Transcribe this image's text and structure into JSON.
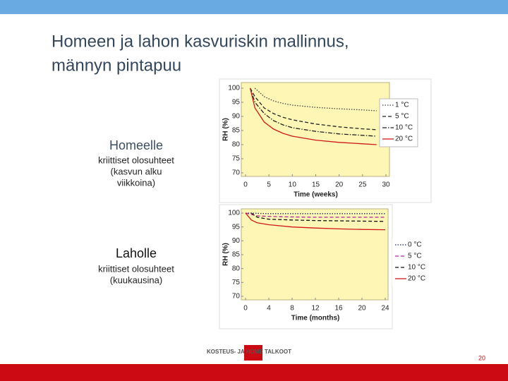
{
  "slide": {
    "title_lines": [
      "Homeen ja lahon kasvuriskin mallinnus,",
      "männyn pintapuu"
    ],
    "sections": [
      {
        "heading": "Homeelle",
        "lines": [
          "kriittiset  olosuhteet",
          "(kasvun alku",
          "viikkoina)"
        ]
      },
      {
        "heading": "Laholle",
        "lines": [
          "kriittiset olosuhteet",
          "(kuukausina)"
        ]
      }
    ],
    "logo": "KOSTEUS- JA HOME TALKOOT",
    "page_number": "20"
  },
  "chart_data": [
    {
      "type": "line",
      "xlabel": "Time (weeks)",
      "ylabel": "RH (%)",
      "x": [
        1,
        2,
        4,
        6,
        8,
        10,
        15,
        20,
        25,
        28
      ],
      "xlim": [
        0,
        30
      ],
      "xticks": [
        0,
        5,
        10,
        15,
        20,
        25,
        30
      ],
      "ylim": [
        70,
        100
      ],
      "yticks": [
        70,
        75,
        80,
        85,
        90,
        95,
        100
      ],
      "grid": false,
      "legend": "right",
      "series": [
        {
          "name": "1 °C",
          "color": "#444444",
          "dash": "dotted",
          "values": [
            null,
            100,
            97,
            95.5,
            94.6,
            94,
            93.2,
            92.7,
            92.3,
            92
          ]
        },
        {
          "name": "5 °C",
          "color": "#222222",
          "dash": "dashed",
          "values": [
            100,
            97,
            93,
            91,
            89.7,
            88.8,
            87.3,
            86.3,
            85.6,
            85.3
          ]
        },
        {
          "name": "10 °C",
          "color": "#222222",
          "dash": "dashdot",
          "values": [
            100,
            95,
            91,
            88.5,
            87,
            86,
            84.7,
            83.8,
            83.3,
            83
          ]
        },
        {
          "name": "20 °C",
          "color": "#d01818",
          "dash": "solid",
          "values": [
            100,
            93,
            88,
            85.5,
            84,
            83,
            81.6,
            80.8,
            80.3,
            80
          ]
        }
      ]
    },
    {
      "type": "line",
      "xlabel": "Time (months)",
      "ylabel": "RH (%)",
      "x": [
        0,
        1,
        2,
        4,
        8,
        12,
        16,
        20,
        24
      ],
      "xlim": [
        0,
        24
      ],
      "xticks": [
        0,
        4,
        8,
        12,
        16,
        20,
        24
      ],
      "ylim": [
        70,
        100
      ],
      "yticks": [
        70,
        75,
        80,
        85,
        90,
        95,
        100
      ],
      "grid": false,
      "legend": "right",
      "series": [
        {
          "name": "0 °C",
          "color": "#1a2a6a",
          "dash": "dotted",
          "values": [
            100,
            100,
            99.9,
            99.8,
            99.8,
            99.8,
            99.8,
            99.8,
            99.8
          ]
        },
        {
          "name": "5 °C",
          "color": "#b0209a",
          "dash": "dashed",
          "values": [
            100,
            99.5,
            99,
            98.8,
            98.6,
            98.5,
            98.5,
            98.5,
            98.5
          ]
        },
        {
          "name": "10 °C",
          "color": "#111111",
          "dash": "dashed",
          "values": [
            null,
            100,
            98.5,
            97.8,
            97.5,
            97.3,
            97.2,
            97.1,
            97
          ]
        },
        {
          "name": "20 °C",
          "color": "#d01818",
          "dash": "solid",
          "values": [
            100,
            97.5,
            96.5,
            95.8,
            95,
            94.6,
            94.3,
            94.1,
            94
          ]
        }
      ]
    }
  ]
}
